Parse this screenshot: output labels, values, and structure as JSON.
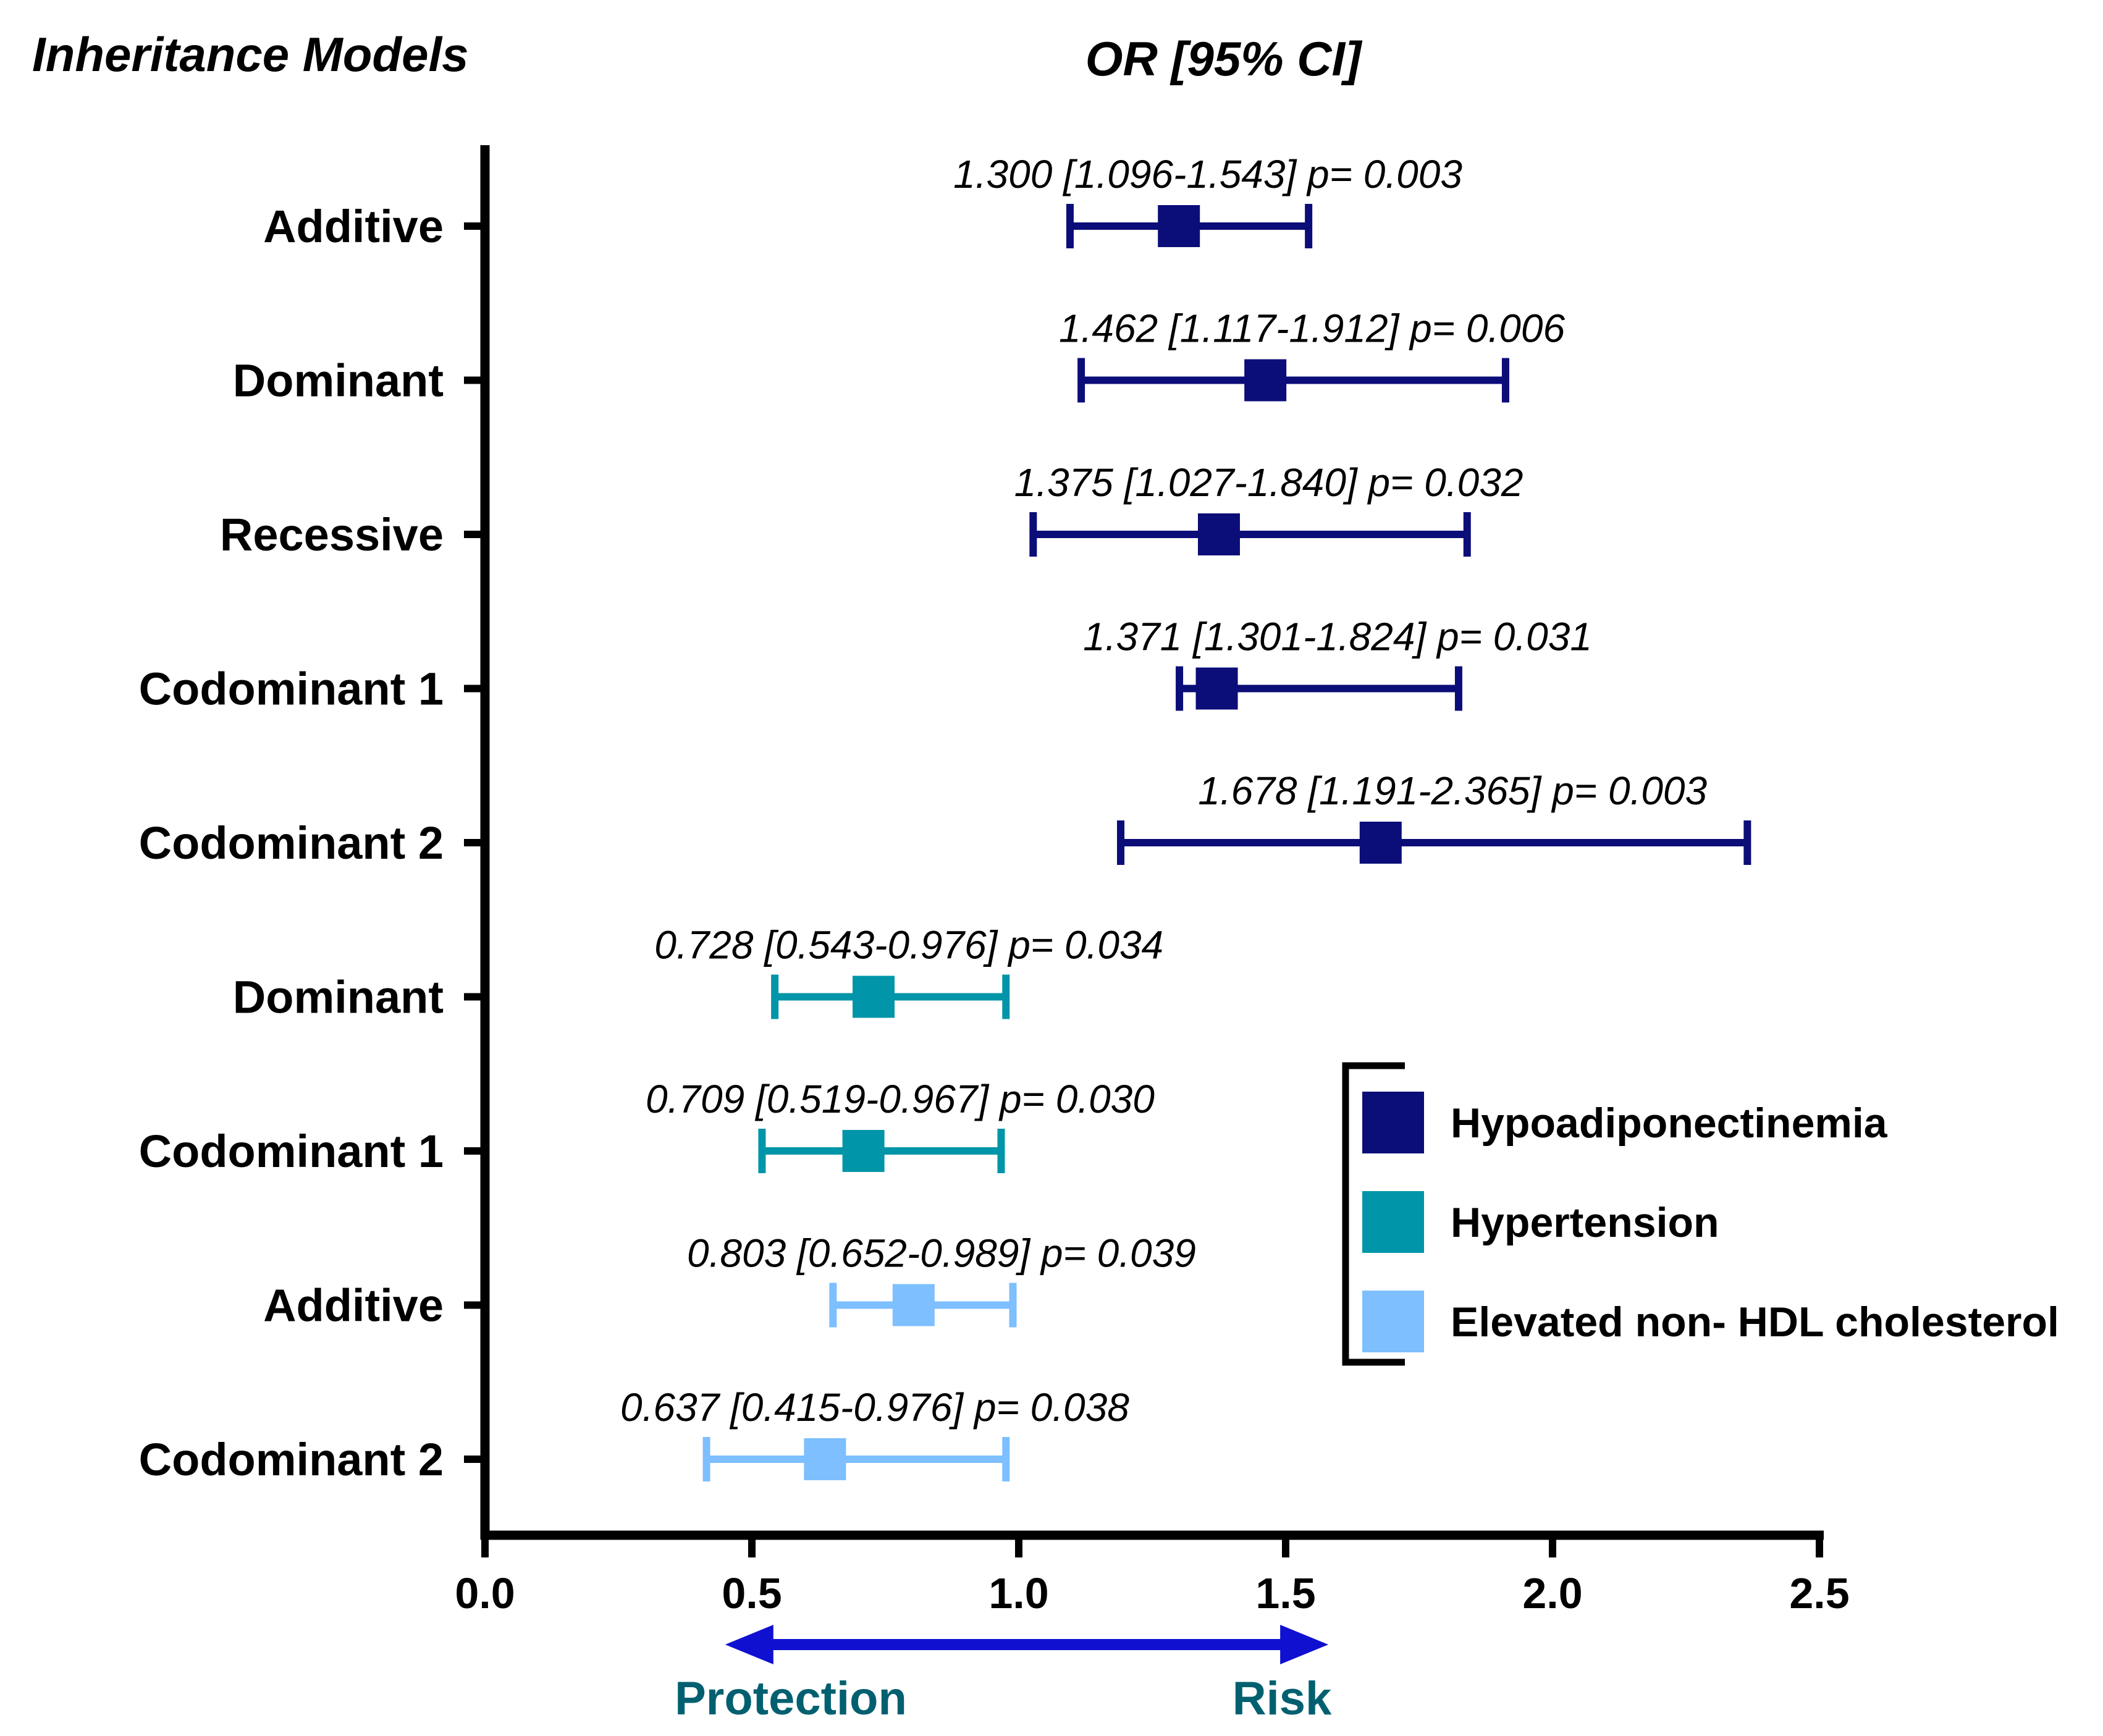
{
  "chart_data": {
    "type": "forest",
    "left_heading": "Inheritance Models",
    "title": "OR [95% CI]",
    "xlim": [
      0.0,
      2.5
    ],
    "x_ticks": [
      "0.0",
      "0.5",
      "1.0",
      "1.5",
      "2.0",
      "2.5"
    ],
    "x_tick_values": [
      0.0,
      0.5,
      1.0,
      1.5,
      2.0,
      2.5
    ],
    "direction": {
      "left_label": "Protection",
      "right_label": "Risk",
      "from_value": 0.45,
      "to_value": 1.58
    },
    "series": [
      {
        "name": "Hypoadiponectinemia",
        "color": "#0B0D78"
      },
      {
        "name": "Hypertension",
        "color": "#0095A8"
      },
      {
        "name": "Elevated non- HDL cholesterol",
        "color": "#7DBFFF"
      }
    ],
    "rows": [
      {
        "model": "Additive",
        "series": 0,
        "or": 1.3,
        "ci_low": 1.096,
        "ci_high": 1.543,
        "annotation": "1.300 [1.096-1.543] p= 0.003"
      },
      {
        "model": "Dominant",
        "series": 0,
        "or": 1.462,
        "ci_low": 1.117,
        "ci_high": 1.912,
        "annotation": "1.462 [1.117-1.912] p= 0.006"
      },
      {
        "model": "Recessive",
        "series": 0,
        "or": 1.375,
        "ci_low": 1.027,
        "ci_high": 1.84,
        "annotation": "1.375 [1.027-1.840] p= 0.032"
      },
      {
        "model": "Codominant 1",
        "series": 0,
        "or": 1.371,
        "ci_low": 1.301,
        "ci_high": 1.824,
        "annotation": "1.371 [1.301-1.824] p= 0.031"
      },
      {
        "model": "Codominant 2",
        "series": 0,
        "or": 1.678,
        "ci_low": 1.191,
        "ci_high": 2.365,
        "annotation": "1.678 [1.191-2.365] p= 0.003"
      },
      {
        "model": "Dominant",
        "series": 1,
        "or": 0.728,
        "ci_low": 0.543,
        "ci_high": 0.976,
        "annotation": "0.728 [0.543-0.976] p= 0.034"
      },
      {
        "model": "Codominant 1",
        "series": 1,
        "or": 0.709,
        "ci_low": 0.519,
        "ci_high": 0.967,
        "annotation": "0.709 [0.519-0.967] p= 0.030"
      },
      {
        "model": "Additive",
        "series": 2,
        "or": 0.803,
        "ci_low": 0.652,
        "ci_high": 0.989,
        "annotation": "0.803 [0.652-0.989] p= 0.039"
      },
      {
        "model": "Codominant 2",
        "series": 2,
        "or": 0.637,
        "ci_low": 0.415,
        "ci_high": 0.976,
        "annotation": "0.637 [0.415-0.976] p= 0.038"
      }
    ],
    "arrow_color": "#1010D0",
    "direction_label_color": "#006070"
  }
}
